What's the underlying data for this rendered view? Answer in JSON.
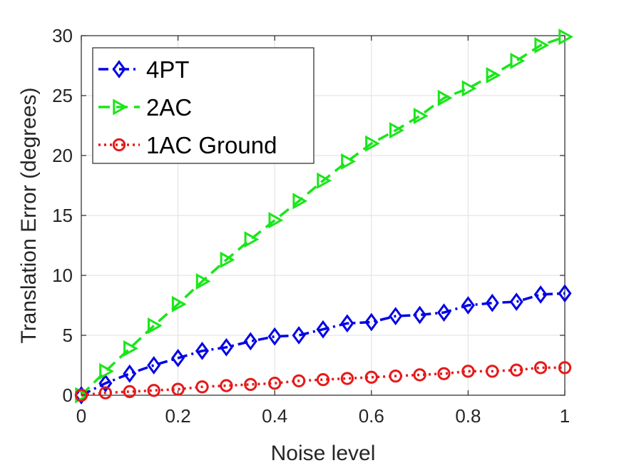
{
  "chart_data": {
    "type": "line",
    "xlabel": "Noise level",
    "ylabel": "Translation Error (degrees)",
    "xlim": [
      0,
      1
    ],
    "ylim": [
      0,
      30
    ],
    "x_ticks": [
      "0",
      "0.2",
      "0.4",
      "0.6",
      "0.8",
      "1"
    ],
    "y_ticks": [
      "0",
      "5",
      "10",
      "15",
      "20",
      "25",
      "30"
    ],
    "grid": true,
    "legend_position": "top-left",
    "x": [
      0,
      0.05,
      0.1,
      0.15,
      0.2,
      0.25,
      0.3,
      0.35,
      0.4,
      0.45,
      0.5,
      0.55,
      0.6,
      0.65,
      0.7,
      0.75,
      0.8,
      0.85,
      0.9,
      0.95,
      1.0
    ],
    "series": [
      {
        "name": "4PT",
        "color": "#0000e6",
        "line_style": "dashdot",
        "marker": "diamond",
        "values": [
          0,
          1.0,
          1.8,
          2.5,
          3.1,
          3.7,
          4.0,
          4.5,
          4.9,
          5.0,
          5.5,
          6.0,
          6.1,
          6.6,
          6.7,
          6.9,
          7.5,
          7.7,
          7.8,
          8.4,
          8.5
        ]
      },
      {
        "name": "2AC",
        "color": "#19e619",
        "line_style": "dashed",
        "marker": "triangle-right",
        "values": [
          0,
          2.0,
          3.9,
          5.8,
          7.6,
          9.5,
          11.3,
          13.0,
          14.6,
          16.2,
          17.9,
          19.5,
          21.0,
          22.1,
          23.3,
          24.8,
          25.6,
          26.7,
          27.9,
          29.2,
          29.9
        ]
      },
      {
        "name": "1AC Ground",
        "color": "#e61919",
        "line_style": "dotted",
        "marker": "circle",
        "values": [
          0,
          0.2,
          0.3,
          0.4,
          0.5,
          0.7,
          0.8,
          0.9,
          1.0,
          1.2,
          1.3,
          1.4,
          1.5,
          1.6,
          1.7,
          1.8,
          2.0,
          2.0,
          2.1,
          2.3,
          2.3
        ]
      }
    ]
  }
}
